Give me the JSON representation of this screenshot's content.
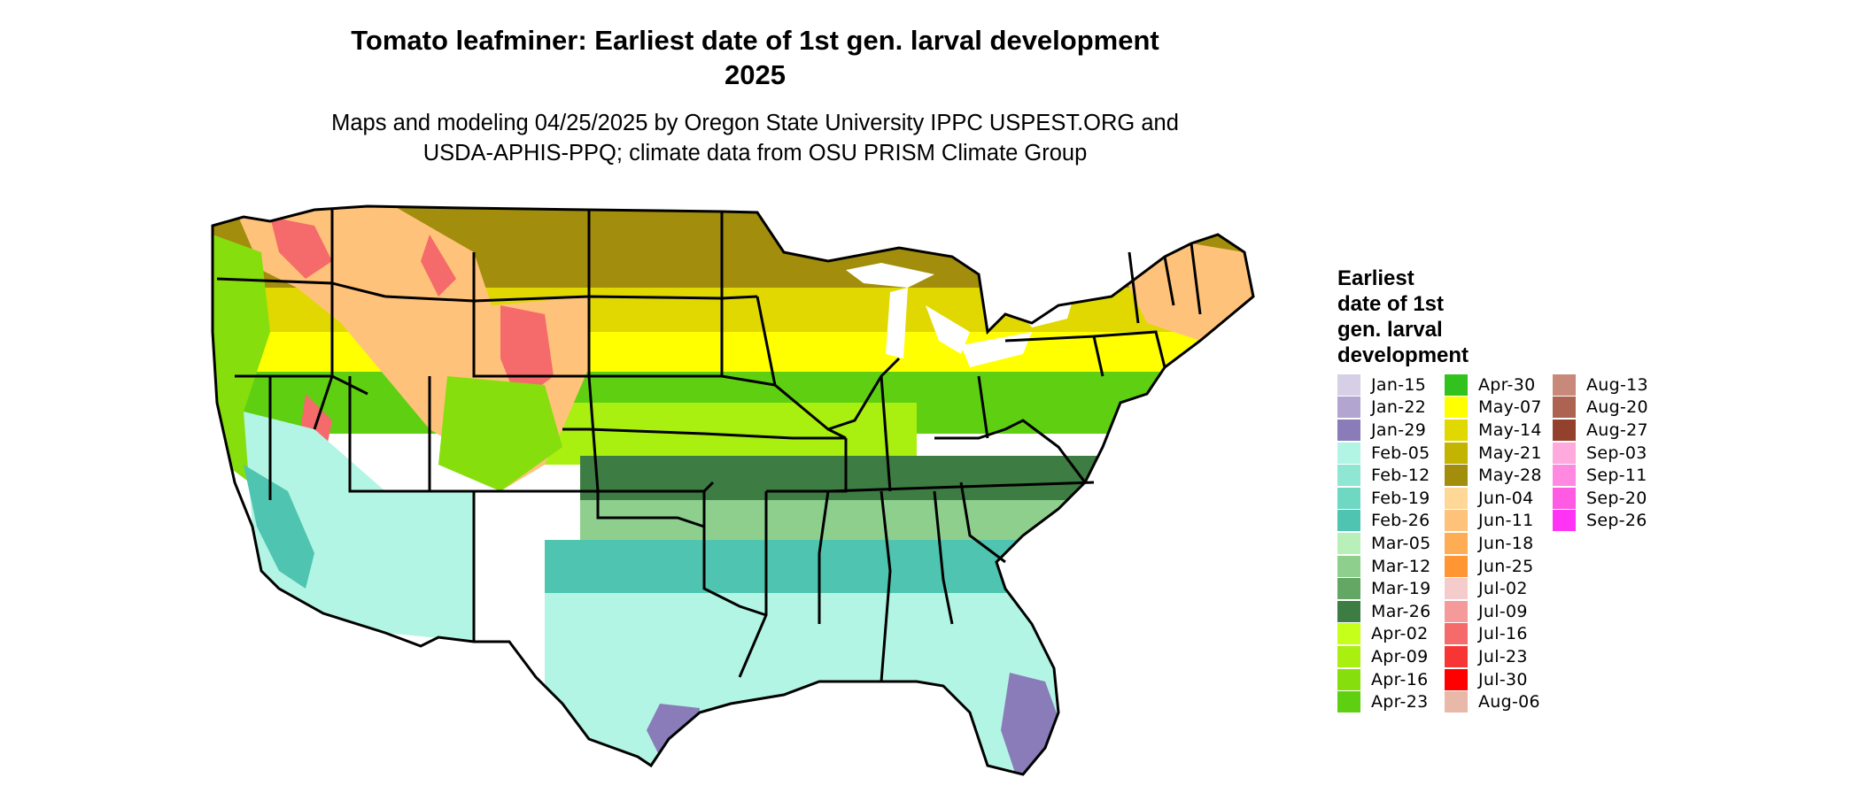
{
  "title": {
    "line1": "Tomato leafminer: Earliest date of 1st gen. larval development",
    "line2": "2025"
  },
  "subtitle": {
    "line1": "Maps and modeling 04/25/2025 by Oregon State University IPPC USPEST.ORG and",
    "line2": "USDA-APHIS-PPQ; climate data from OSU PRISM Climate Group"
  },
  "legend": {
    "title": [
      "Earliest",
      "date of 1st",
      "gen. larval",
      "development"
    ],
    "columns": [
      [
        {
          "label": "Jan-15",
          "color": "#d6d0e6"
        },
        {
          "label": "Jan-22",
          "color": "#b2a6d0"
        },
        {
          "label": "Jan-29",
          "color": "#8a7cb8"
        },
        {
          "label": "Feb-05",
          "color": "#b3f5e4"
        },
        {
          "label": "Feb-12",
          "color": "#8ee6d3"
        },
        {
          "label": "Feb-19",
          "color": "#6fd8c3"
        },
        {
          "label": "Feb-26",
          "color": "#4fc4b1"
        },
        {
          "label": "Mar-05",
          "color": "#b9efb9"
        },
        {
          "label": "Mar-12",
          "color": "#8ecf8e"
        },
        {
          "label": "Mar-19",
          "color": "#64a764"
        },
        {
          "label": "Mar-26",
          "color": "#3d7c42"
        },
        {
          "label": "Apr-02",
          "color": "#c6ff1a"
        },
        {
          "label": "Apr-09",
          "color": "#a9ef0f"
        },
        {
          "label": "Apr-16",
          "color": "#86de0d"
        },
        {
          "label": "Apr-23",
          "color": "#5fd011"
        }
      ],
      [
        {
          "label": "Apr-30",
          "color": "#32c21e"
        },
        {
          "label": "May-07",
          "color": "#ffff00"
        },
        {
          "label": "May-14",
          "color": "#e0d800"
        },
        {
          "label": "May-21",
          "color": "#c2b400"
        },
        {
          "label": "May-28",
          "color": "#a38d0c"
        },
        {
          "label": "Jun-04",
          "color": "#ffd898"
        },
        {
          "label": "Jun-11",
          "color": "#ffc27a"
        },
        {
          "label": "Jun-18",
          "color": "#ffad55"
        },
        {
          "label": "Jun-25",
          "color": "#ff9633"
        },
        {
          "label": "Jul-02",
          "color": "#f5cccc"
        },
        {
          "label": "Jul-09",
          "color": "#f49a9a"
        },
        {
          "label": "Jul-16",
          "color": "#f56a6a"
        },
        {
          "label": "Jul-23",
          "color": "#f83535"
        },
        {
          "label": "Jul-30",
          "color": "#ff0000"
        },
        {
          "label": "Aug-06",
          "color": "#e8b8a8"
        }
      ],
      [
        {
          "label": "Aug-13",
          "color": "#c8897a"
        },
        {
          "label": "Aug-20",
          "color": "#ad6352"
        },
        {
          "label": "Aug-27",
          "color": "#93402c"
        },
        {
          "label": "Sep-03",
          "color": "#ffaadd"
        },
        {
          "label": "Sep-11",
          "color": "#ff88e0"
        },
        {
          "label": "Sep-20",
          "color": "#ff5ae4"
        },
        {
          "label": "Sep-26",
          "color": "#ff33f5"
        }
      ]
    ]
  },
  "map": {
    "regions": [
      {
        "name": "north-plains",
        "color": "#a38d0c"
      },
      {
        "name": "northern-band",
        "color": "#e0d800"
      },
      {
        "name": "upper-midwest-yellow",
        "color": "#ffff00"
      },
      {
        "name": "central-green",
        "color": "#5fd011"
      },
      {
        "name": "kansas-lime",
        "color": "#a9ef0f"
      },
      {
        "name": "southeast-dark",
        "color": "#3d7c42"
      },
      {
        "name": "south-mid",
        "color": "#8ecf8e"
      },
      {
        "name": "gulf-teal",
        "color": "#4fc4b1"
      },
      {
        "name": "gulf-coast",
        "color": "#b3f5e4"
      },
      {
        "name": "florida-purple",
        "color": "#8a7cb8"
      },
      {
        "name": "mountains-orange",
        "color": "#ffc27a"
      },
      {
        "name": "mountain-peaks-red",
        "color": "#f56a6a"
      },
      {
        "name": "west-coast-green",
        "color": "#86de0d"
      },
      {
        "name": "southwest-desert",
        "color": "#b3f5e4"
      },
      {
        "name": "great-lakes-water",
        "color": "#ffffff"
      }
    ]
  }
}
